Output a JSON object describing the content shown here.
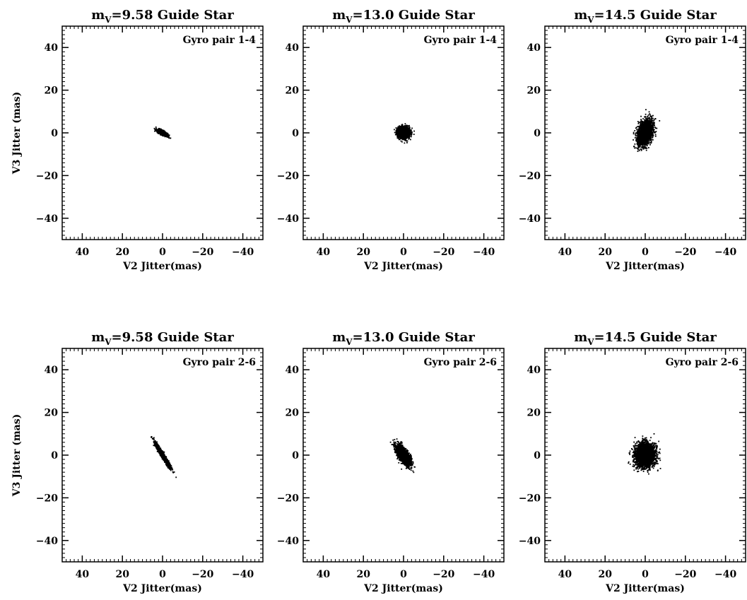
{
  "chart_data": [
    {
      "type": "scatter",
      "title": {
        "main": "m",
        "subscript": "V",
        "rest": "=9.58 Guide Star"
      },
      "annotation": "Gyro pair 1-4",
      "xlabel": "V2 Jitter(mas)",
      "ylabel": "V3 Jitter (mas)",
      "xlim": [
        50,
        -50
      ],
      "ylim": [
        -50,
        50
      ],
      "xticks": [
        40,
        20,
        0,
        -20,
        -40
      ],
      "yticks": [
        40,
        20,
        0,
        -20,
        -40
      ],
      "tick_labels": {
        "x": [
          "40",
          "20",
          "0",
          "−20",
          "−40"
        ],
        "y": [
          "40",
          "20",
          "0",
          "−20",
          "−40"
        ]
      },
      "cloud": {
        "center": [
          0,
          0
        ],
        "sigma_major": 1.3,
        "sigma_minor": 0.4,
        "angle_deg": -25,
        "n_points": 1600
      }
    },
    {
      "type": "scatter",
      "title": {
        "main": "m",
        "subscript": "V",
        "rest": "=13.0 Guide Star"
      },
      "annotation": "Gyro pair 1-4",
      "xlabel": "V2 Jitter(mas)",
      "ylabel": "",
      "xlim": [
        50,
        -50
      ],
      "ylim": [
        -50,
        50
      ],
      "xticks": [
        40,
        20,
        0,
        -20,
        -40
      ],
      "yticks": [
        40,
        20,
        0,
        -20,
        -40
      ],
      "tick_labels": {
        "x": [
          "40",
          "20",
          "0",
          "−20",
          "−40"
        ],
        "y": [
          "40",
          "20",
          "0",
          "−20",
          "−40"
        ]
      },
      "cloud": {
        "center": [
          0,
          0
        ],
        "sigma_major": 1.4,
        "sigma_minor": 1.3,
        "angle_deg": 0,
        "n_points": 2200
      }
    },
    {
      "type": "scatter",
      "title": {
        "main": "m",
        "subscript": "V",
        "rest": "=14.5 Guide Star"
      },
      "annotation": "Gyro pair 1-4",
      "xlabel": "V2 Jitter(mas)",
      "ylabel": "",
      "xlim": [
        50,
        -50
      ],
      "ylim": [
        -50,
        50
      ],
      "xticks": [
        40,
        20,
        0,
        -20,
        -40
      ],
      "yticks": [
        40,
        20,
        0,
        -20,
        -40
      ],
      "tick_labels": {
        "x": [
          "40",
          "20",
          "0",
          "−20",
          "−40"
        ],
        "y": [
          "40",
          "20",
          "0",
          "−20",
          "−40"
        ]
      },
      "cloud": {
        "center": [
          0,
          0
        ],
        "sigma_major": 3.0,
        "sigma_minor": 1.6,
        "angle_deg": 72,
        "n_points": 2600
      }
    },
    {
      "type": "scatter",
      "title": {
        "main": "m",
        "subscript": "V",
        "rest": "=9.58 Guide Star"
      },
      "annotation": "Gyro pair 2-6",
      "xlabel": "V2 Jitter(mas)",
      "ylabel": "V3 Jitter (mas)",
      "xlim": [
        50,
        -50
      ],
      "ylim": [
        -50,
        50
      ],
      "xticks": [
        40,
        20,
        0,
        -20,
        -40
      ],
      "yticks": [
        40,
        20,
        0,
        -20,
        -40
      ],
      "tick_labels": {
        "x": [
          "40",
          "20",
          "0",
          "−20",
          "−40"
        ],
        "y": [
          "40",
          "20",
          "0",
          "−20",
          "−40"
        ]
      },
      "cloud": {
        "center": [
          0,
          0
        ],
        "sigma_major": 3.2,
        "sigma_minor": 0.4,
        "angle_deg": -57,
        "n_points": 1800
      }
    },
    {
      "type": "scatter",
      "title": {
        "main": "m",
        "subscript": "V",
        "rest": "=13.0 Guide Star"
      },
      "annotation": "Gyro pair 2-6",
      "xlabel": "V2 Jitter(mas)",
      "ylabel": "",
      "xlim": [
        50,
        -50
      ],
      "ylim": [
        -50,
        50
      ],
      "xticks": [
        40,
        20,
        0,
        -20,
        -40
      ],
      "yticks": [
        40,
        20,
        0,
        -20,
        -40
      ],
      "tick_labels": {
        "x": [
          "40",
          "20",
          "0",
          "−20",
          "−40"
        ],
        "y": [
          "40",
          "20",
          "0",
          "−20",
          "−40"
        ]
      },
      "cloud": {
        "center": [
          0,
          0
        ],
        "sigma_major": 2.6,
        "sigma_minor": 1.1,
        "angle_deg": -55,
        "n_points": 2400
      }
    },
    {
      "type": "scatter",
      "title": {
        "main": "m",
        "subscript": "V",
        "rest": "=14.5 Guide Star"
      },
      "annotation": "Gyro pair 2-6",
      "xlabel": "V2 Jitter(mas)",
      "ylabel": "",
      "xlim": [
        50,
        -50
      ],
      "ylim": [
        -50,
        50
      ],
      "xticks": [
        40,
        20,
        0,
        -20,
        -40
      ],
      "yticks": [
        40,
        20,
        0,
        -20,
        -40
      ],
      "tick_labels": {
        "x": [
          "40",
          "20",
          "0",
          "−20",
          "−40"
        ],
        "y": [
          "40",
          "20",
          "0",
          "−20",
          "−40"
        ]
      },
      "cloud": {
        "center": [
          0,
          0
        ],
        "sigma_major": 2.7,
        "sigma_minor": 2.4,
        "angle_deg": 80,
        "n_points": 3000
      }
    }
  ],
  "colors": {
    "points": "#000000",
    "axes": "#000000",
    "background": "#ffffff"
  }
}
